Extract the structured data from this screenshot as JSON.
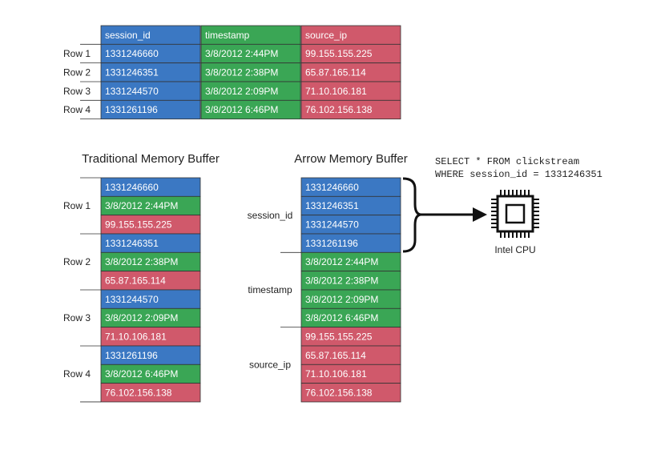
{
  "table": {
    "headers": [
      "session_id",
      "timestamp",
      "source_ip"
    ],
    "rows": [
      {
        "label": "Row 1",
        "cells": [
          "1331246660",
          "3/8/2012 2:44PM",
          "99.155.155.225"
        ]
      },
      {
        "label": "Row 2",
        "cells": [
          "1331246351",
          "3/8/2012 2:38PM",
          "65.87.165.114"
        ]
      },
      {
        "label": "Row 3",
        "cells": [
          "1331244570",
          "3/8/2012 2:09PM",
          "71.10.106.181"
        ]
      },
      {
        "label": "Row 4",
        "cells": [
          "1331261196",
          "3/8/2012 6:46PM",
          "76.102.156.138"
        ]
      }
    ]
  },
  "traditional": {
    "title": "Traditional Memory Buffer"
  },
  "arrow": {
    "title": "Arrow Memory Buffer"
  },
  "query": {
    "lines": [
      "SELECT * FROM clickstream",
      "WHERE session_id = 1331246351"
    ]
  },
  "cpu": {
    "label": "Intel CPU"
  }
}
